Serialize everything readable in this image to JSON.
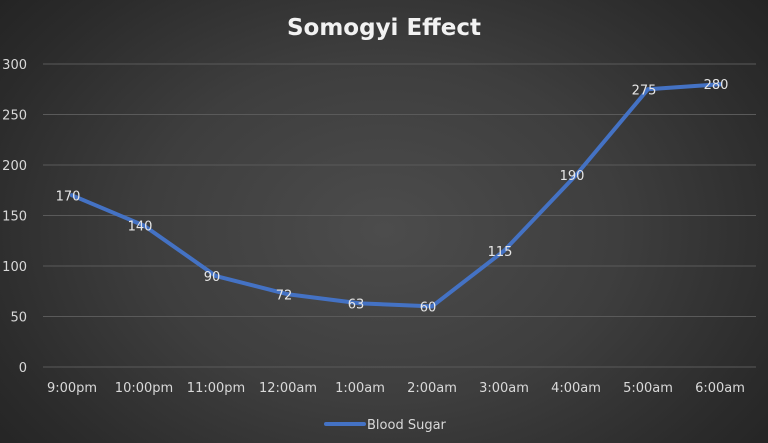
{
  "chart_data": {
    "type": "line",
    "title": "Somogyi Effect",
    "xlabel": "",
    "ylabel": "",
    "categories": [
      "9:00pm",
      "10:00pm",
      "11:00pm",
      "12:00am",
      "1:00am",
      "2:00am",
      "3:00am",
      "4:00am",
      "5:00am",
      "6:00am"
    ],
    "series": [
      {
        "name": "Blood Sugar",
        "values": [
          170,
          140,
          90,
          72,
          63,
          60,
          115,
          190,
          275,
          280
        ],
        "color": "#4472C4"
      }
    ],
    "ylim": [
      0,
      300
    ],
    "yticks": [
      0,
      50,
      100,
      150,
      200,
      250,
      300
    ],
    "grid": true,
    "legend": "bottom",
    "data_labels": true
  }
}
